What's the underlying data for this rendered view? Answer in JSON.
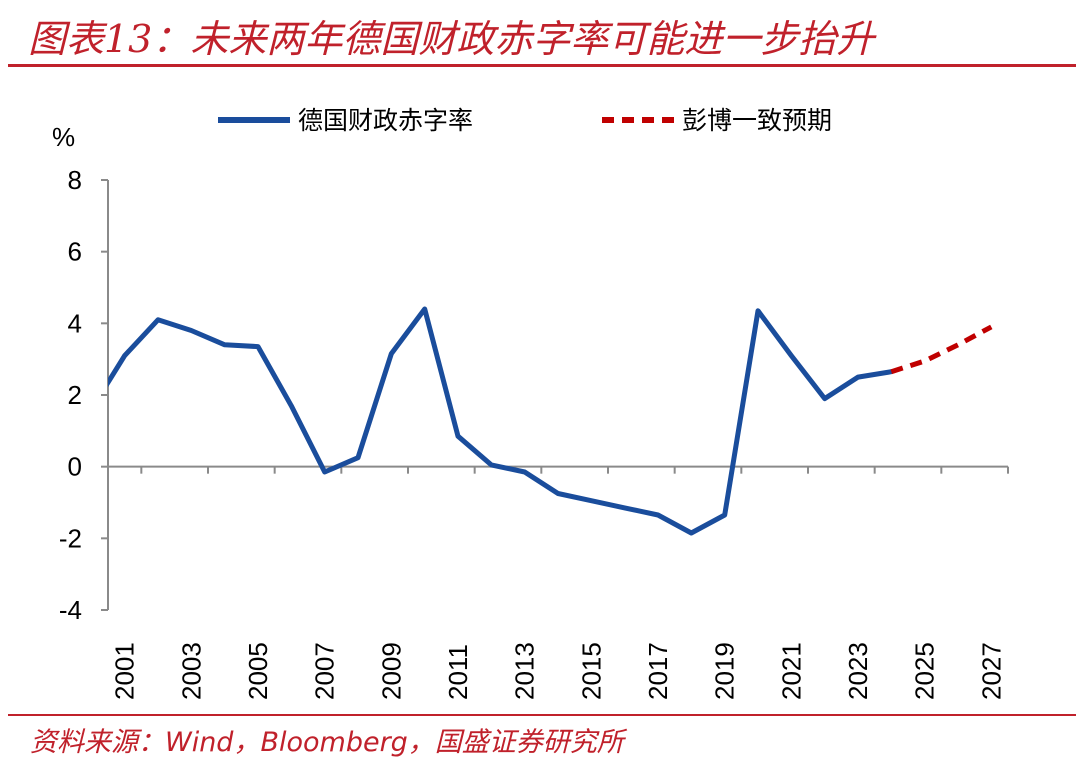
{
  "header": {
    "title": "图表13：未来两年德国财政赤字率可能进一步抬升"
  },
  "footer": {
    "source": "资料来源：Wind，Bloomberg，国盛证券研究所"
  },
  "colors": {
    "accent": "#c0212b",
    "series_actual": "#1a4d9c",
    "series_forecast": "#c00000",
    "axis": "#8a8a8a"
  },
  "chart_data": {
    "type": "line",
    "title": "",
    "xlabel": "",
    "ylabel": "%",
    "ylim": [
      -4,
      8
    ],
    "yticks": [
      8,
      6,
      4,
      2,
      0,
      -2,
      -4
    ],
    "xlim": [
      2000.5,
      2027.5
    ],
    "xticks": [
      "2001",
      "2003",
      "2005",
      "2007",
      "2009",
      "2011",
      "2013",
      "2015",
      "2017",
      "2019",
      "2021",
      "2023",
      "2025",
      "2027"
    ],
    "grid": false,
    "legend_position": "top",
    "series": [
      {
        "name": "德国财政赤字率",
        "style": "solid",
        "x": [
          2000,
          2001,
          2002,
          2003,
          2004,
          2005,
          2006,
          2007,
          2008,
          2009,
          2010,
          2011,
          2012,
          2013,
          2014,
          2015,
          2016,
          2017,
          2018,
          2019,
          2020,
          2021,
          2022,
          2023,
          2024
        ],
        "y": [
          1.6,
          3.1,
          4.1,
          3.8,
          3.4,
          3.35,
          1.7,
          -0.15,
          0.25,
          3.15,
          4.4,
          0.85,
          0.05,
          -0.15,
          -0.75,
          -0.95,
          -1.15,
          -1.35,
          -1.85,
          -1.35,
          4.35,
          3.1,
          1.9,
          2.5,
          2.65
        ]
      },
      {
        "name": "彭博一致预期",
        "style": "dashed",
        "x": [
          2024,
          2025,
          2026,
          2027
        ],
        "y": [
          2.65,
          2.95,
          3.4,
          3.9
        ]
      }
    ]
  }
}
